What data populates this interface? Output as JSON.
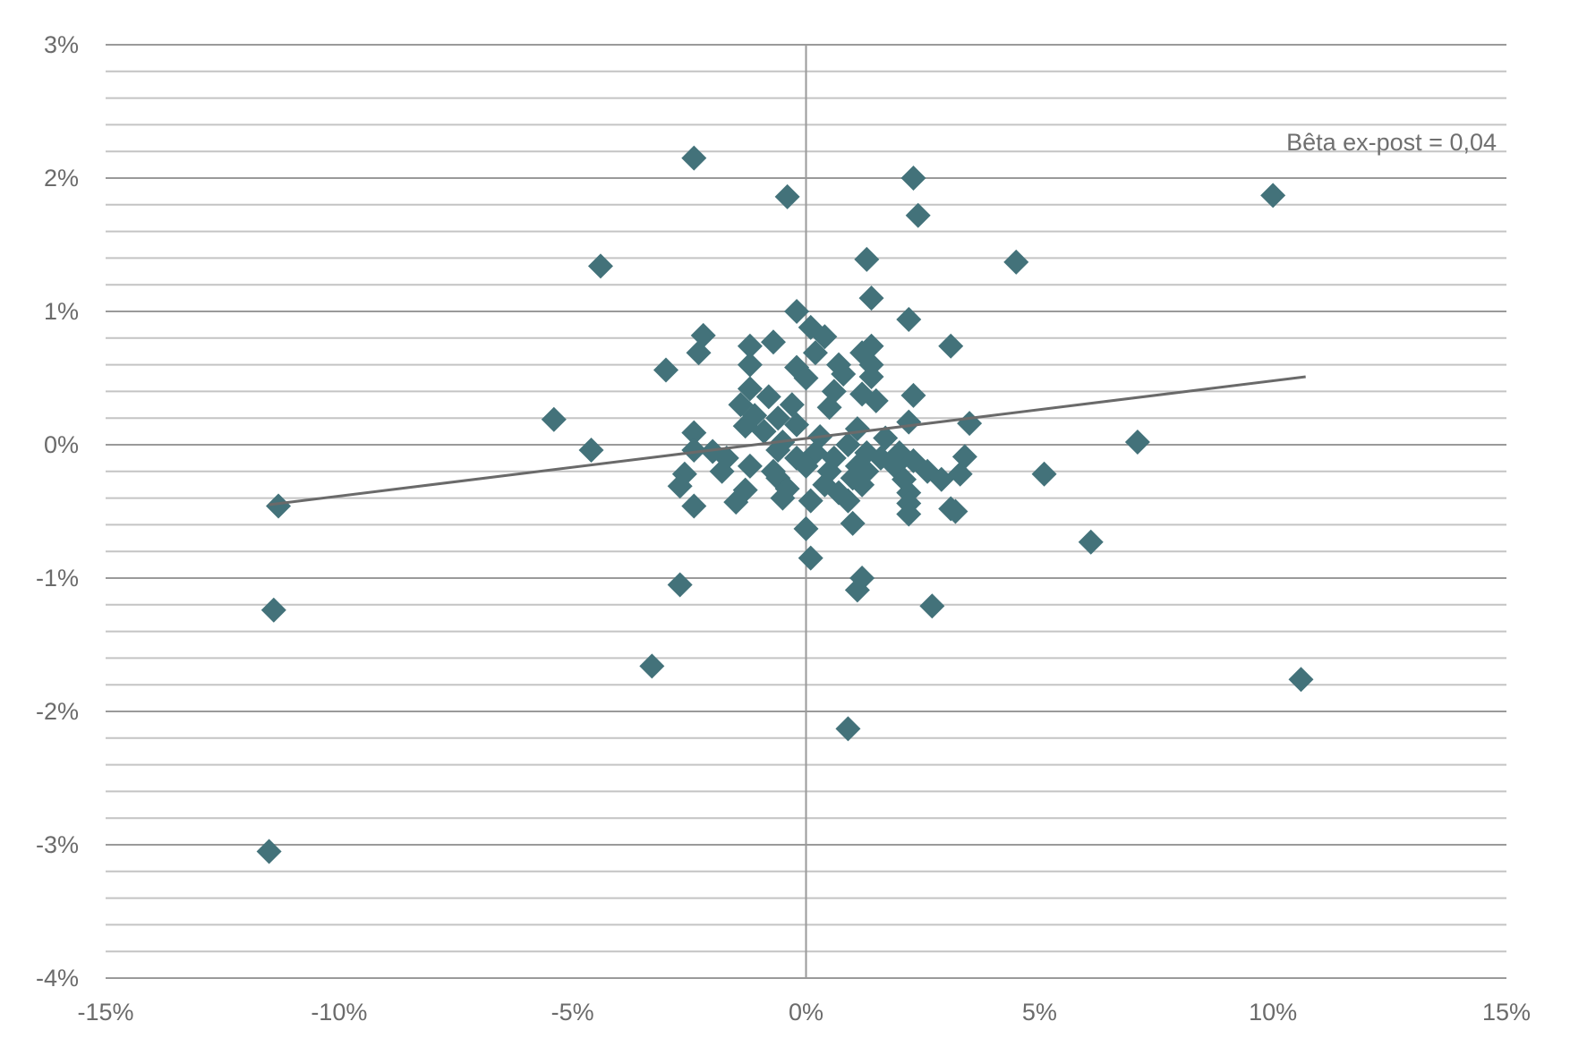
{
  "chart_data": {
    "type": "scatter",
    "title": "",
    "xlabel": "",
    "ylabel": "",
    "xlim": [
      -15,
      15
    ],
    "ylim": [
      -4,
      3
    ],
    "x_ticks": [
      -15,
      -10,
      -5,
      0,
      5,
      10,
      15
    ],
    "y_ticks": [
      3,
      2,
      1,
      0,
      -1,
      -2,
      -3,
      -4
    ],
    "x_tick_labels": [
      "-15%",
      "-10%",
      "-5%",
      "0%",
      "5%",
      "10%",
      "15%"
    ],
    "y_tick_labels": [
      "3%",
      "2%",
      "1%",
      "0%",
      "-1%",
      "-2%",
      "-3%",
      "-4%"
    ],
    "minor_y_step": 0.2,
    "grid": "horizontal",
    "legend": "none",
    "marker": "diamond",
    "marker_color": "#43727a",
    "trendline": {
      "x": [
        -11.5,
        10.7
      ],
      "y": [
        -0.45,
        0.51
      ],
      "color": "#6a6a6a"
    },
    "annotation": "Bêta ex-post = 0,04",
    "points": [
      [
        -2.4,
        2.15
      ],
      [
        -0.4,
        1.86
      ],
      [
        2.3,
        2.0
      ],
      [
        2.4,
        1.72
      ],
      [
        10.0,
        1.87
      ],
      [
        -4.4,
        1.34
      ],
      [
        1.3,
        1.39
      ],
      [
        4.5,
        1.37
      ],
      [
        1.4,
        1.1
      ],
      [
        -0.2,
        1.0
      ],
      [
        2.2,
        0.94
      ],
      [
        -2.2,
        0.82
      ],
      [
        -2.3,
        0.69
      ],
      [
        0.1,
        0.88
      ],
      [
        0.4,
        0.81
      ],
      [
        -0.7,
        0.77
      ],
      [
        -1.2,
        0.74
      ],
      [
        3.1,
        0.74
      ],
      [
        1.4,
        0.74
      ],
      [
        0.2,
        0.69
      ],
      [
        1.2,
        0.69
      ],
      [
        -3.0,
        0.56
      ],
      [
        -1.2,
        0.6
      ],
      [
        -0.2,
        0.58
      ],
      [
        0.7,
        0.6
      ],
      [
        1.4,
        0.6
      ],
      [
        0.0,
        0.5
      ],
      [
        0.8,
        0.53
      ],
      [
        1.4,
        0.51
      ],
      [
        -1.2,
        0.42
      ],
      [
        -0.8,
        0.36
      ],
      [
        0.6,
        0.4
      ],
      [
        1.2,
        0.38
      ],
      [
        2.3,
        0.37
      ],
      [
        1.5,
        0.33
      ],
      [
        -1.4,
        0.3
      ],
      [
        -0.3,
        0.3
      ],
      [
        0.5,
        0.28
      ],
      [
        -1.1,
        0.22
      ],
      [
        -0.6,
        0.2
      ],
      [
        -5.4,
        0.19
      ],
      [
        2.2,
        0.17
      ],
      [
        3.5,
        0.16
      ],
      [
        -1.3,
        0.14
      ],
      [
        -0.2,
        0.15
      ],
      [
        1.1,
        0.12
      ],
      [
        -0.9,
        0.1
      ],
      [
        0.3,
        0.06
      ],
      [
        -2.4,
        0.09
      ],
      [
        1.7,
        0.05
      ],
      [
        -0.5,
        0.02
      ],
      [
        7.1,
        0.02
      ],
      [
        0.9,
        0.0
      ],
      [
        -4.6,
        -0.04
      ],
      [
        -2.4,
        -0.04
      ],
      [
        -2.0,
        -0.05
      ],
      [
        -0.6,
        -0.04
      ],
      [
        0.2,
        -0.06
      ],
      [
        1.3,
        -0.06
      ],
      [
        2.0,
        -0.06
      ],
      [
        -1.7,
        -0.1
      ],
      [
        -0.2,
        -0.1
      ],
      [
        0.6,
        -0.1
      ],
      [
        1.6,
        -0.1
      ],
      [
        3.4,
        -0.09
      ],
      [
        2.3,
        -0.12
      ],
      [
        -1.2,
        -0.16
      ],
      [
        0.0,
        -0.16
      ],
      [
        1.1,
        -0.16
      ],
      [
        1.9,
        -0.16
      ],
      [
        -1.8,
        -0.2
      ],
      [
        -0.7,
        -0.2
      ],
      [
        0.5,
        -0.2
      ],
      [
        1.3,
        -0.2
      ],
      [
        2.6,
        -0.2
      ],
      [
        3.3,
        -0.22
      ],
      [
        -2.6,
        -0.22
      ],
      [
        5.1,
        -0.22
      ],
      [
        -0.6,
        -0.25
      ],
      [
        1.0,
        -0.25
      ],
      [
        2.1,
        -0.26
      ],
      [
        2.9,
        -0.26
      ],
      [
        0.4,
        -0.3
      ],
      [
        1.2,
        -0.3
      ],
      [
        -2.7,
        -0.31
      ],
      [
        -1.3,
        -0.34
      ],
      [
        -0.4,
        -0.33
      ],
      [
        0.7,
        -0.36
      ],
      [
        2.2,
        -0.36
      ],
      [
        -0.5,
        -0.4
      ],
      [
        0.1,
        -0.42
      ],
      [
        0.9,
        -0.42
      ],
      [
        -1.5,
        -0.43
      ],
      [
        2.2,
        -0.44
      ],
      [
        -11.3,
        -0.46
      ],
      [
        -2.4,
        -0.46
      ],
      [
        3.1,
        -0.48
      ],
      [
        3.2,
        -0.5
      ],
      [
        2.2,
        -0.52
      ],
      [
        1.0,
        -0.59
      ],
      [
        0.0,
        -0.63
      ],
      [
        6.1,
        -0.73
      ],
      [
        0.1,
        -0.85
      ],
      [
        1.2,
        -1.0
      ],
      [
        -2.7,
        -1.05
      ],
      [
        1.1,
        -1.09
      ],
      [
        -11.4,
        -1.24
      ],
      [
        2.7,
        -1.21
      ],
      [
        -3.3,
        -1.66
      ],
      [
        10.6,
        -1.76
      ],
      [
        0.9,
        -2.13
      ],
      [
        -11.5,
        -3.05
      ]
    ]
  }
}
